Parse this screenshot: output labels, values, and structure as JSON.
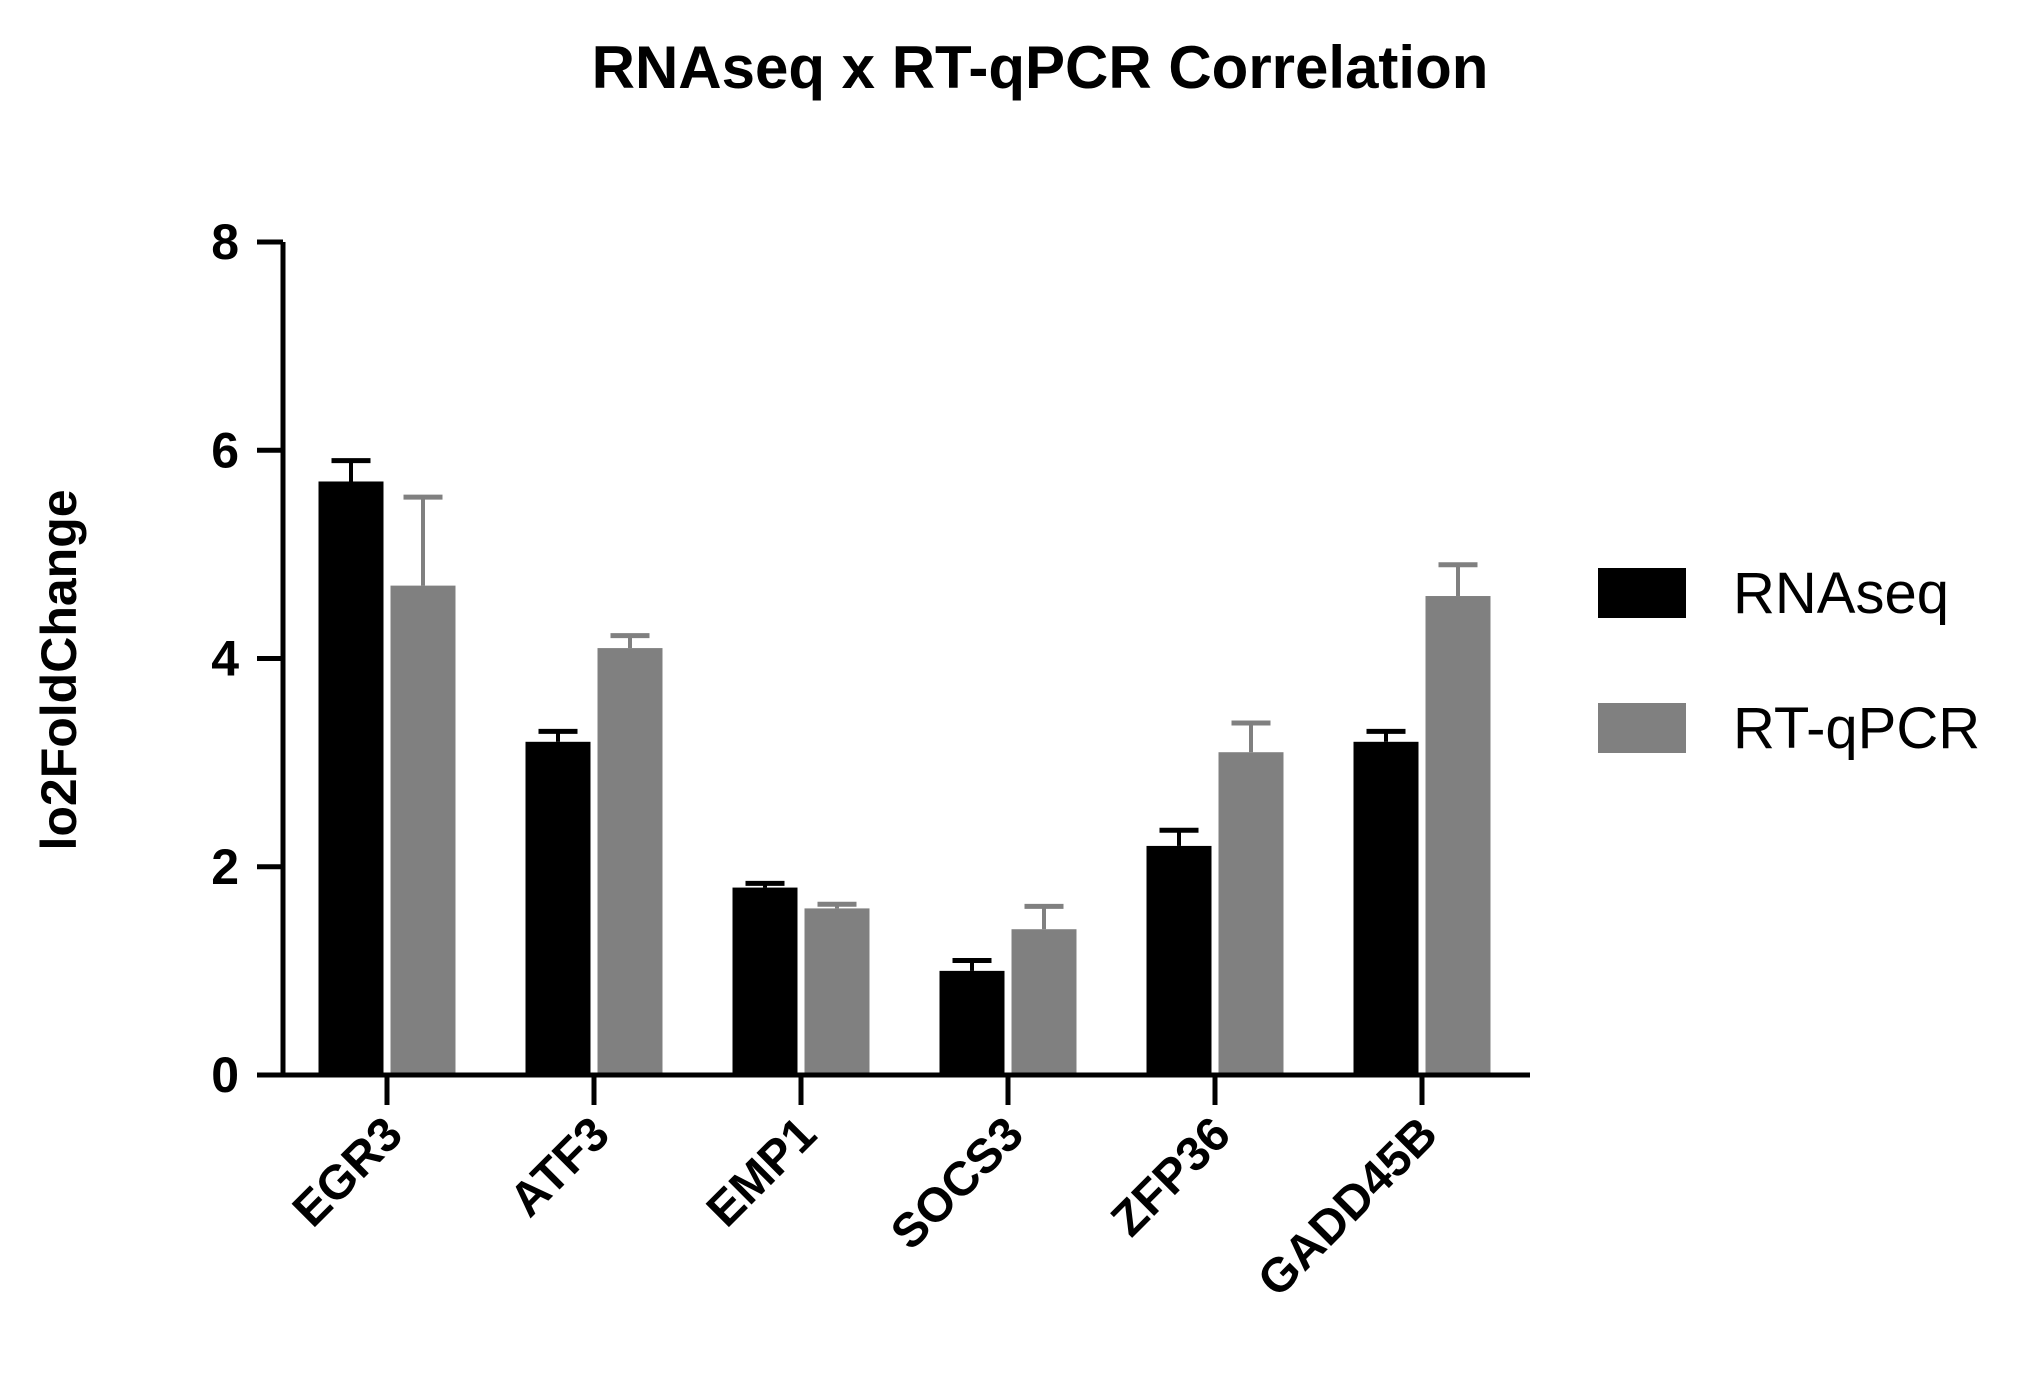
{
  "chart_data": {
    "type": "bar",
    "title": "RNAseq x RT-qPCR Correlation",
    "xlabel": "",
    "ylabel": "lo2FoldChange",
    "ylim": [
      0,
      8
    ],
    "yticks": [
      0,
      2,
      4,
      6,
      8
    ],
    "categories": [
      "EGR3",
      "ATF3",
      "EMP1",
      "SOCS3",
      "ZFP36",
      "GADD45B"
    ],
    "series": [
      {
        "name": "RNAseq",
        "color": "#000000",
        "values": [
          5.7,
          3.2,
          1.8,
          1.0,
          2.2,
          3.2
        ],
        "errors": [
          0.2,
          0.1,
          0.04,
          0.1,
          0.15,
          0.1
        ]
      },
      {
        "name": "RT-qPCR",
        "color": "#808080",
        "values": [
          4.7,
          4.1,
          1.6,
          1.4,
          3.1,
          4.6
        ],
        "errors": [
          0.85,
          0.12,
          0.04,
          0.22,
          0.28,
          0.3
        ]
      }
    ],
    "legend_position": "right",
    "grid": false
  }
}
